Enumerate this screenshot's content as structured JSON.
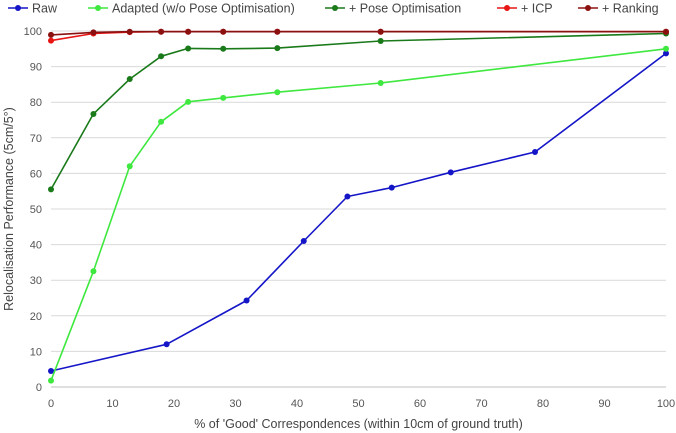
{
  "chart_data": {
    "type": "line",
    "title": "",
    "xlabel": "% of 'Good' Correspondences (within 10cm of ground truth)",
    "ylabel": "Relocalisation Performance (5cm/5°)",
    "xlim": [
      0,
      100
    ],
    "ylim": [
      0,
      100
    ],
    "x_ticks": [
      0,
      10,
      20,
      30,
      40,
      50,
      60,
      70,
      80,
      90,
      100
    ],
    "y_ticks": [
      0,
      10,
      20,
      30,
      40,
      50,
      60,
      70,
      80,
      90,
      100
    ],
    "grid": "horizontal",
    "legend_position": "top",
    "series": [
      {
        "name": "Raw",
        "color": "#1515c8",
        "x": [
          0,
          18.8,
          31.8,
          41.1,
          48.2,
          55.4,
          65,
          78.7,
          100
        ],
        "y": [
          4.5,
          12,
          24.3,
          41,
          53.5,
          56,
          60.3,
          66,
          93.7
        ]
      },
      {
        "name": "Adapted (w/o Pose Optimisation)",
        "color": "#3ee83e",
        "x": [
          0,
          6.9,
          12.8,
          17.9,
          22.3,
          28,
          36.8,
          53.6,
          100
        ],
        "y": [
          1.8,
          32.5,
          62,
          74.5,
          80.1,
          81.2,
          82.8,
          85.4,
          95
        ]
      },
      {
        "name": "+ Pose Optimisation",
        "color": "#1a7a1a",
        "x": [
          0,
          6.9,
          12.8,
          17.9,
          22.3,
          28,
          36.8,
          53.6,
          100
        ],
        "y": [
          55.5,
          76.7,
          86.5,
          92.9,
          95.1,
          95,
          95.2,
          97.2,
          99.3
        ]
      },
      {
        "name": "+ ICP",
        "color": "#e81515",
        "x": [
          0,
          6.9,
          12.8,
          17.9,
          22.3,
          28,
          36.8,
          53.6,
          100
        ],
        "y": [
          97.3,
          99.3,
          99.7,
          99.8,
          99.8,
          99.8,
          99.8,
          99.8,
          99.8
        ]
      },
      {
        "name": "+ Ranking",
        "color": "#8b1010",
        "x": [
          0,
          6.9,
          12.8,
          17.9,
          22.3,
          28,
          36.8,
          53.6,
          100
        ],
        "y": [
          98.9,
          99.6,
          99.8,
          99.8,
          99.8,
          99.8,
          99.8,
          99.8,
          99.8
        ]
      }
    ]
  }
}
